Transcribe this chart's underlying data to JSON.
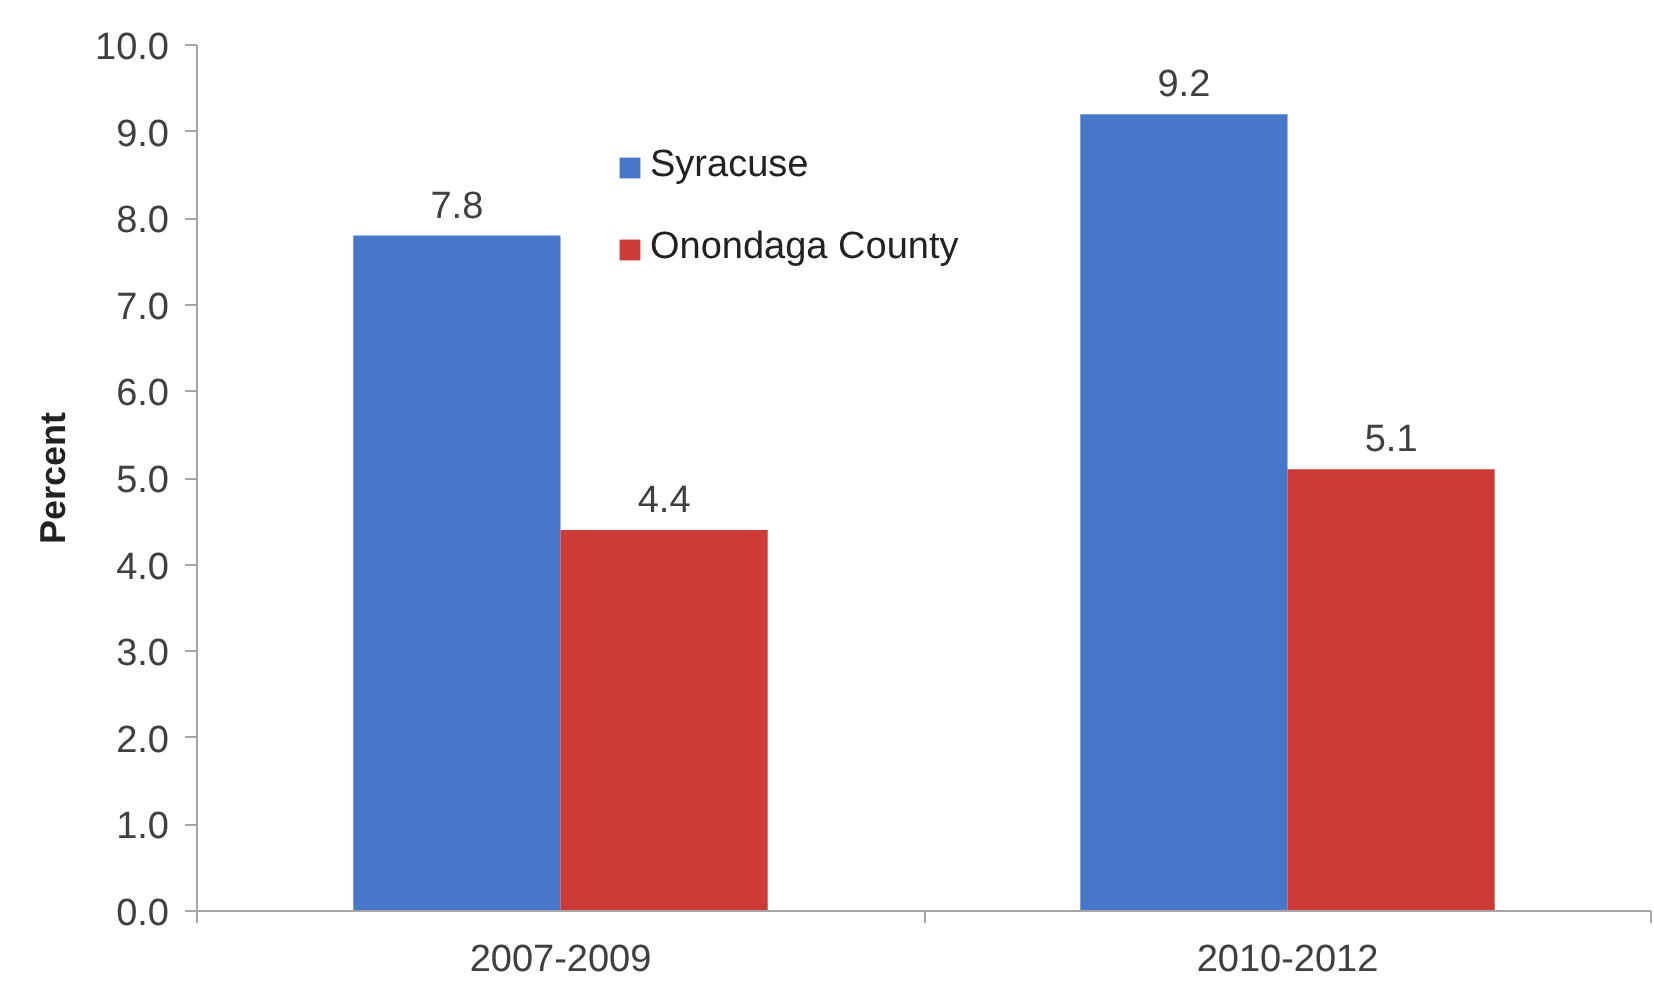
{
  "chart_data": {
    "type": "bar",
    "categories": [
      "2007-2009",
      "2010-2012"
    ],
    "ylabel": "Percent",
    "series": [
      {
        "name": "Syracuse",
        "color": "#4677c8",
        "values": [
          7.8,
          9.2
        ]
      },
      {
        "name": "Onondaga County",
        "color": "#cc3b36",
        "values": [
          4.4,
          5.1
        ]
      }
    ],
    "ylim": [
      0,
      10
    ],
    "yticks": [
      {
        "value": 0,
        "label": "0.0"
      },
      {
        "value": 1,
        "label": "1.0"
      },
      {
        "value": 2,
        "label": "2.0"
      },
      {
        "value": 3,
        "label": "3.0"
      },
      {
        "value": 4,
        "label": "4.0"
      },
      {
        "value": 5,
        "label": "5.0"
      },
      {
        "value": 6,
        "label": "6.0"
      },
      {
        "value": 7,
        "label": "7.0"
      },
      {
        "value": 8,
        "label": "8.0"
      },
      {
        "value": 9,
        "label": "9.0"
      },
      {
        "value": 10,
        "label": "10.0"
      }
    ],
    "grid": false,
    "legend": "top",
    "data_labels": true
  }
}
